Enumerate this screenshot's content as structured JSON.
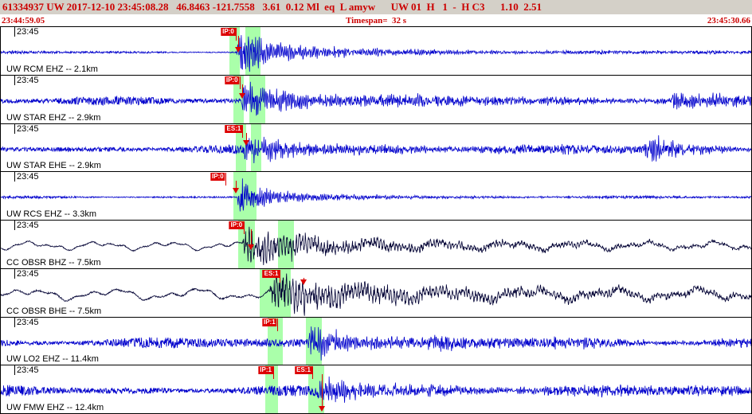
{
  "header": {
    "text": "61334937 UW 2017-12-10 23:45:08.28   46.8463 -121.7558   3.61  0.12 Ml  eq  L amyw      UW 01  H   1  -  H C3      1.10  2.51"
  },
  "timebar": {
    "start": "23:44:59.05",
    "timespan": "Timespan=  32 s",
    "end": "23:45:30.66"
  },
  "colors": {
    "trace_blue": "#0000cc",
    "trace_black": "#000033",
    "pick_red": "#dd0000",
    "band_green": "#aaffaa",
    "header_bg": "#d4d0c8",
    "header_text": "#cc0000"
  },
  "traces": [
    {
      "time_label": "23:45",
      "station": "UW RCM EHZ -- 2.1km",
      "color": "#0000cc",
      "picks": [
        {
          "label": "IP:0",
          "x": 0.313
        }
      ],
      "triangles": [
        {
          "x": 0.3165,
          "y": 0.42
        }
      ],
      "bands": [
        [
          0.3045,
          0.3185
        ],
        [
          0.326,
          0.3465
        ]
      ],
      "wave": {
        "seed": 11,
        "baseType": "hf",
        "base": 1.3,
        "onset": 0.3135,
        "peak": 27,
        "tau": 0.045,
        "hfreq": 420,
        "extras": [
          {
            "onset": 0.325,
            "peak": 6,
            "tau": 0.28
          }
        ]
      }
    },
    {
      "time_label": "23:45",
      "station": "UW STAR EHZ -- 2.9km",
      "color": "#0000cc",
      "picks": [
        {
          "label": "IP:0",
          "x": 0.318
        }
      ],
      "triangles": [
        {
          "x": 0.322,
          "y": 0.38
        }
      ],
      "bands": [
        [
          0.31,
          0.324
        ],
        [
          0.331,
          0.352
        ]
      ],
      "wave": {
        "seed": 22,
        "baseType": "hf",
        "base": 3.6,
        "onset": 0.319,
        "peak": 22,
        "tau": 0.05,
        "hfreq": 430,
        "extras": [
          {
            "onset": 0.33,
            "peak": 6,
            "tau": 0.45
          },
          {
            "onset": 0.893,
            "peak": 11,
            "tau": 0.05
          }
        ]
      }
    },
    {
      "time_label": "23:45",
      "station": "UW STAR EHE -- 2.9km",
      "color": "#0000cc",
      "picks": [
        {
          "label": "ES:1",
          "x": 0.322
        }
      ],
      "triangles": [
        {
          "x": 0.327,
          "y": 0.35
        }
      ],
      "bands": [
        [
          0.313,
          0.327
        ],
        [
          0.333,
          0.347
        ]
      ],
      "wave": {
        "seed": 33,
        "baseType": "hf",
        "base": 3.6,
        "onset": 0.321,
        "peak": 15,
        "tau": 0.05,
        "hfreq": 420,
        "extras": [
          {
            "onset": 0.335,
            "peak": 5,
            "tau": 0.4
          },
          {
            "onset": 0.856,
            "peak": 18,
            "tau": 0.05
          }
        ]
      }
    },
    {
      "time_label": "23:45",
      "station": "UW RCS EHZ -- 3.3km",
      "color": "#0000cc",
      "picks": [
        {
          "label": "IP:0",
          "x": 0.299
        }
      ],
      "triangles": [
        {
          "x": 0.3135,
          "y": 0.33
        }
      ],
      "bands": [
        [
          0.3095,
          0.341
        ]
      ],
      "wave": {
        "seed": 44,
        "baseType": "hf",
        "base": 1.1,
        "onset": 0.3145,
        "peak": 23,
        "tau": 0.032,
        "hfreq": 430,
        "extras": [
          {
            "onset": 0.327,
            "peak": 4.5,
            "tau": 0.22
          }
        ]
      }
    },
    {
      "time_label": "23:45",
      "station": "CC OBSR BHZ -- 7.5km",
      "color": "#000033",
      "picks": [
        {
          "label": "IP:0",
          "x": 0.324
        }
      ],
      "triangles": [
        {
          "x": 0.3335,
          "y": 0.5
        }
      ],
      "bands": [
        [
          0.3165,
          0.3385
        ],
        [
          0.3695,
          0.391
        ]
      ],
      "wave": {
        "seed": 55,
        "baseType": "lp",
        "base": 6,
        "lpf": 11,
        "onset": 0.322,
        "peak": 24,
        "tau": 0.055,
        "hfreq": 240,
        "extras": [
          {
            "onset": 0.345,
            "peak": 9,
            "tau": 0.35
          }
        ]
      }
    },
    {
      "time_label": "23:45",
      "station": "CC OBSR BHE -- 7.5km",
      "color": "#000033",
      "picks": [
        {
          "label": "ES:1",
          "x": 0.372
        }
      ],
      "triangles": [
        {
          "x": 0.403,
          "y": 0.22
        }
      ],
      "bands": [
        [
          0.3455,
          0.3865
        ]
      ],
      "wave": {
        "seed": 66,
        "baseType": "lp",
        "base": 8,
        "lpf": 9,
        "onset": 0.357,
        "peak": 26,
        "tau": 0.06,
        "hfreq": 230,
        "extras": [
          {
            "onset": 0.385,
            "peak": 11,
            "tau": 0.45
          }
        ]
      }
    },
    {
      "time_label": "23:45",
      "station": "UW LO2 EHZ -- 11.4km",
      "color": "#0000cc",
      "picks": [
        {
          "label": "IP:1",
          "x": 0.368
        }
      ],
      "triangles": [],
      "bands": [
        [
          0.3555,
          0.3755
        ],
        [
          0.4065,
          0.4275
        ]
      ],
      "wave": {
        "seed": 77,
        "baseType": "hf",
        "base": 4.5,
        "onset": 0.408,
        "peak": 17,
        "tau": 0.05,
        "hfreq": 420,
        "extras": [
          {
            "onset": 0.42,
            "peak": 6,
            "tau": 0.4
          }
        ]
      }
    },
    {
      "time_label": "23:45",
      "station": "UW FMW EHZ -- 12.4km",
      "color": "#0000cc",
      "picks": [
        {
          "label": "IP:1",
          "x": 0.363
        },
        {
          "label": "ES:1",
          "x": 0.415
        }
      ],
      "triangles": [
        {
          "x": 0.4275,
          "y": 0.85
        }
      ],
      "bands": [
        [
          0.3525,
          0.3695
        ],
        [
          0.4095,
          0.4305
        ]
      ],
      "wave": {
        "seed": 88,
        "baseType": "hf",
        "base": 4.5,
        "onset": 0.419,
        "peak": 15,
        "tau": 0.05,
        "hfreq": 420,
        "extras": [
          {
            "onset": 0.43,
            "peak": 5,
            "tau": 0.4
          }
        ]
      }
    }
  ]
}
